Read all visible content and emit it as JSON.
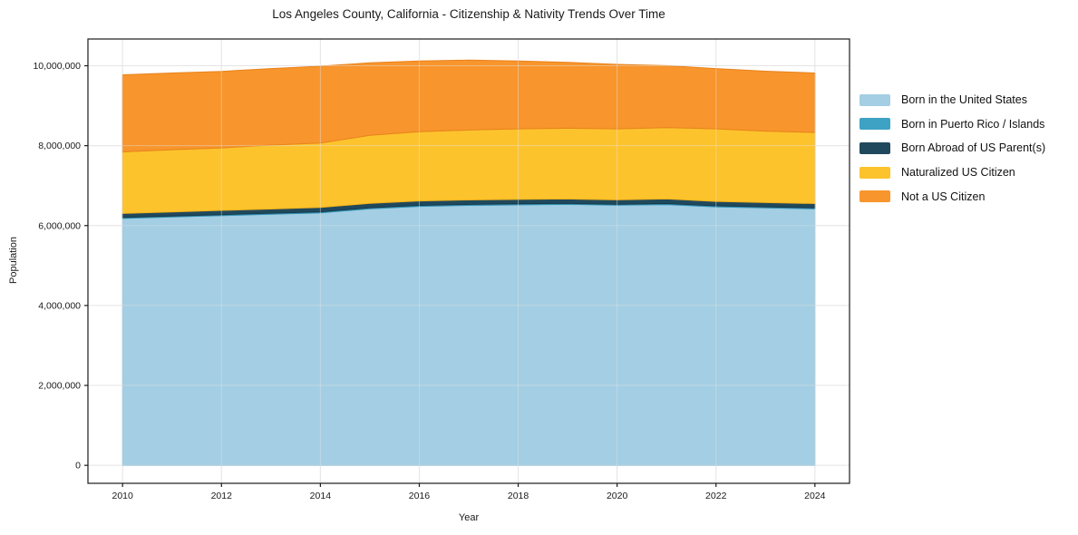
{
  "figure": {
    "title": "Los Angeles County, California - Citizenship & Nativity Trends Over Time"
  },
  "chart_data": {
    "type": "area",
    "stacked": true,
    "title": "Los Angeles County, California - Citizenship & Nativity Trends Over Time",
    "xlabel": "Year",
    "ylabel": "Population",
    "grid": true,
    "legend_position": "right-outside",
    "background_color": "#ffffff",
    "grid_color": "#e5e5e5",
    "spine_color": "#1a1a1a",
    "x": [
      2010,
      2011,
      2012,
      2013,
      2014,
      2015,
      2016,
      2017,
      2018,
      2019,
      2020,
      2021,
      2022,
      2023,
      2024
    ],
    "x_ticks": [
      2010,
      2012,
      2014,
      2016,
      2018,
      2020,
      2022,
      2024
    ],
    "y_ticks": [
      0,
      2000000,
      4000000,
      6000000,
      8000000,
      10000000
    ],
    "xlim": [
      2009.3,
      2024.7
    ],
    "ylim": [
      -450000,
      10670000
    ],
    "series": [
      {
        "name": "Born in the United States",
        "color": "#a3cee3",
        "edge_color": "#8abddb",
        "values": [
          6180000,
          6215000,
          6250000,
          6285000,
          6320000,
          6420000,
          6480000,
          6505000,
          6520000,
          6530000,
          6510000,
          6525000,
          6470000,
          6445000,
          6420000
        ]
      },
      {
        "name": "Born in Puerto Rico / Islands",
        "color": "#3da2c4",
        "edge_color": "#2f8fb0",
        "values": [
          24000,
          24000,
          25000,
          25000,
          25000,
          26000,
          26000,
          26000,
          26000,
          26000,
          25000,
          27000,
          25000,
          25000,
          25000
        ]
      },
      {
        "name": "Born Abroad of US Parent(s)",
        "color": "#20495d",
        "edge_color": "#183a4b",
        "values": [
          100000,
          100000,
          105000,
          105000,
          110000,
          110000,
          110000,
          110000,
          110000,
          110000,
          110000,
          115000,
          110000,
          105000,
          105000
        ]
      },
      {
        "name": "Naturalized US Citizen",
        "color": "#fdc32d",
        "edge_color": "#f0b11b",
        "values": [
          1540000,
          1560000,
          1565000,
          1600000,
          1610000,
          1705000,
          1735000,
          1750000,
          1765000,
          1770000,
          1775000,
          1785000,
          1815000,
          1790000,
          1780000
        ]
      },
      {
        "name": "Not a US Citizen",
        "color": "#f8952c",
        "edge_color": "#e8831d",
        "values": [
          1930000,
          1920000,
          1915000,
          1915000,
          1925000,
          1815000,
          1770000,
          1750000,
          1700000,
          1650000,
          1615000,
          1550000,
          1510000,
          1500000,
          1490000
        ]
      }
    ]
  }
}
